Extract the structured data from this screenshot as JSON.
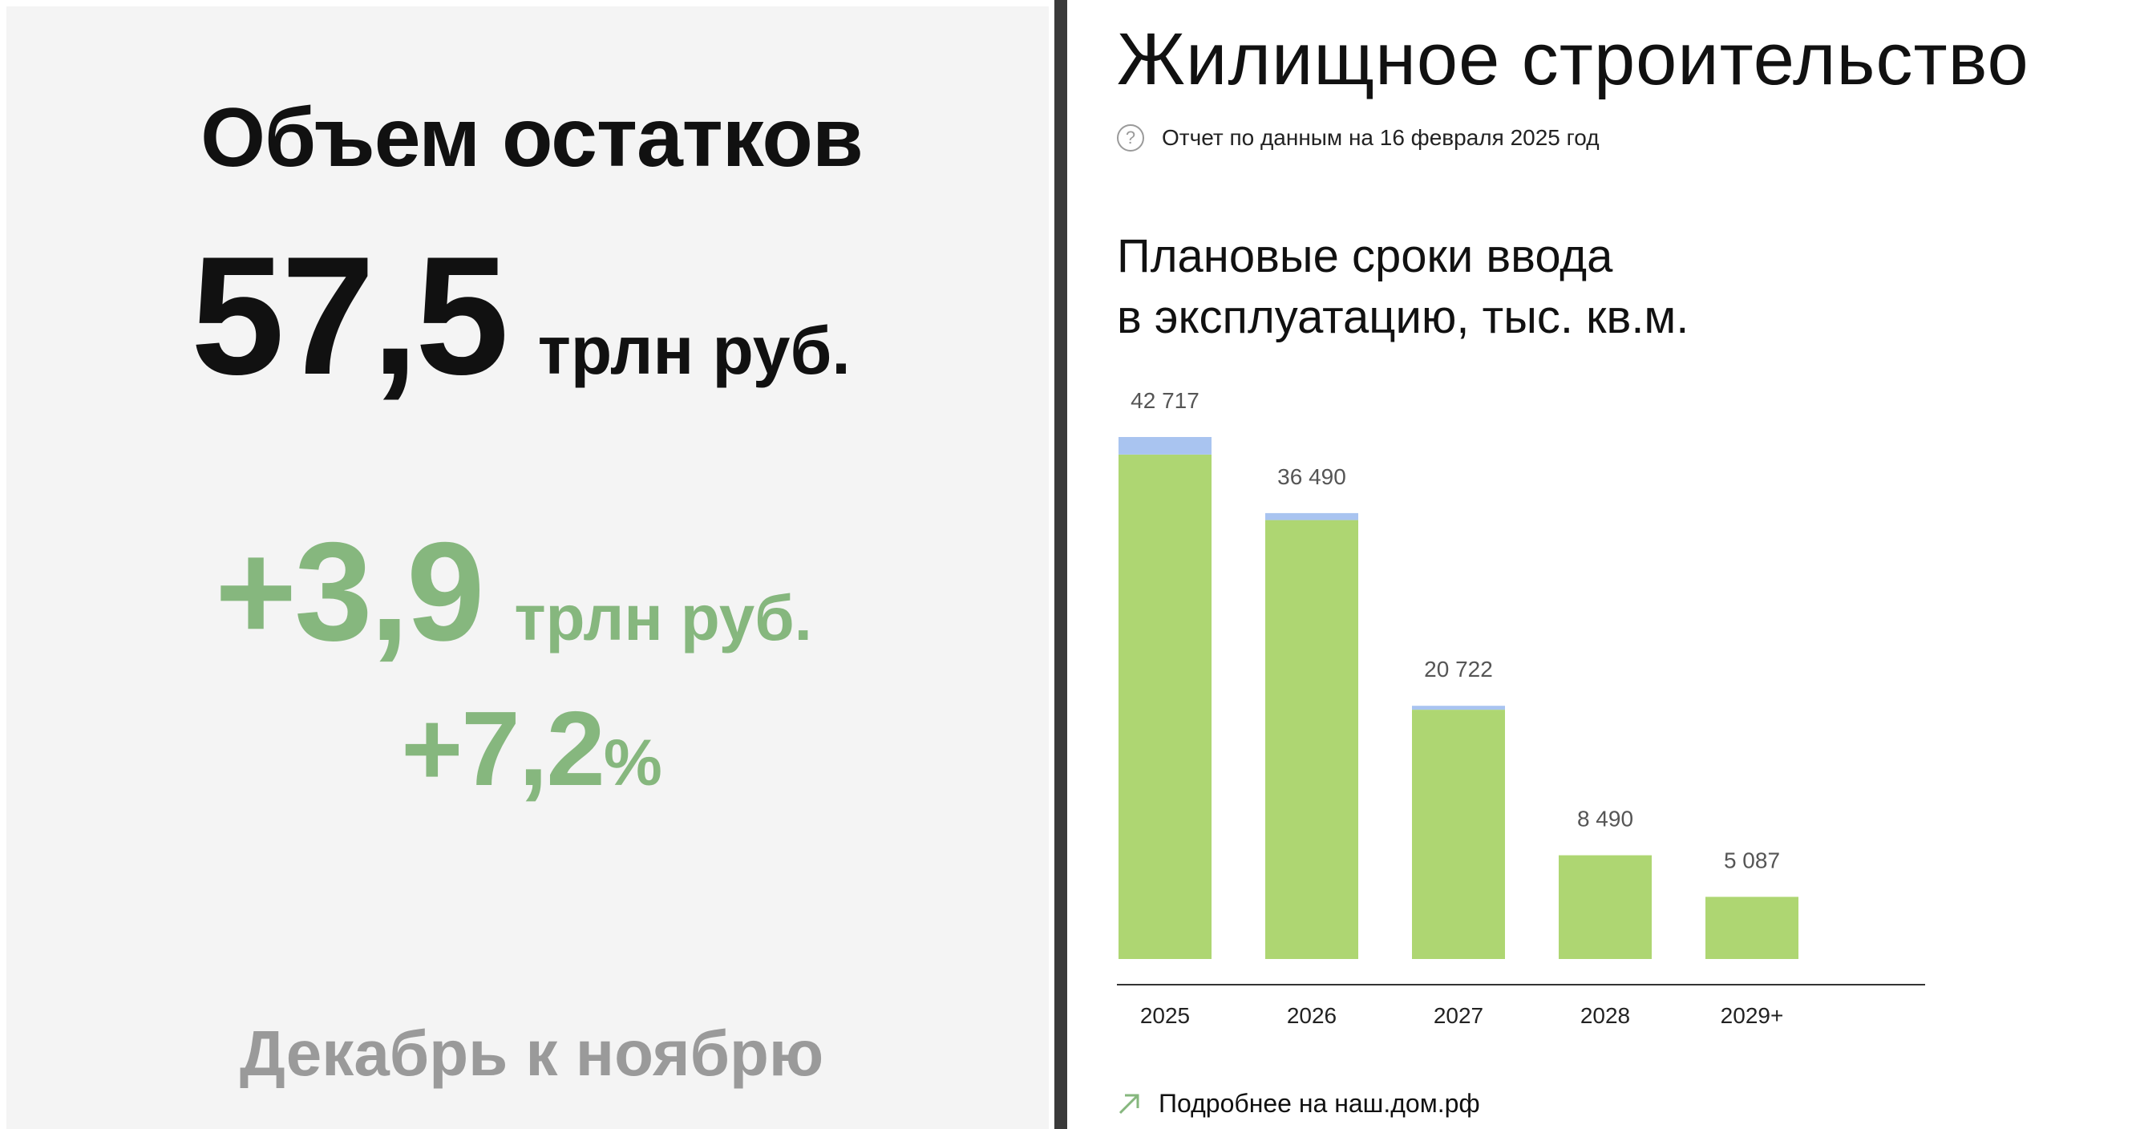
{
  "left": {
    "title": "Объем остатков",
    "value": "57,5",
    "value_unit": "трлн руб.",
    "delta_value": "+3,9",
    "delta_unit": "трлн руб.",
    "delta_pct_number": "+7,2",
    "delta_pct_sign": "%",
    "period": "Декабрь к ноябрю"
  },
  "right": {
    "title": "Жилищное строительство",
    "help_icon": "question-circle-icon",
    "subtitle": "Отчет по данным на 16 февраля 2025 год",
    "chart_title_line1": "Плановые сроки ввода",
    "chart_title_line2": "в эксплуатацию, тыс. кв.м.",
    "more_icon": "arrow-up-right-icon",
    "more_link": "Подробнее на наш.дом.рф"
  },
  "colors": {
    "accent_green": "#86b77e",
    "bar_green": "#aed672",
    "bar_blue": "#a9c4f0",
    "left_bg": "#f4f4f4",
    "divider": "#3a3a3a"
  },
  "chart_data": {
    "type": "bar",
    "stacked": true,
    "title": "Плановые сроки ввода в эксплуатацию, тыс. кв.м.",
    "categories": [
      "2025",
      "2026",
      "2027",
      "2028",
      "2029+"
    ],
    "totals": [
      42717,
      36490,
      20722,
      8490,
      5087
    ],
    "total_labels": [
      "42 717",
      "36 490",
      "20 722",
      "8 490",
      "5 087"
    ],
    "series": [
      {
        "color": "#aed672",
        "values": [
          41280,
          35920,
          20400,
          8490,
          5087
        ]
      },
      {
        "color": "#a9c4f0",
        "values": [
          1437,
          570,
          322,
          0,
          0
        ]
      }
    ],
    "ylim": [
      0,
      42717
    ],
    "grid": false,
    "legend": "none"
  }
}
